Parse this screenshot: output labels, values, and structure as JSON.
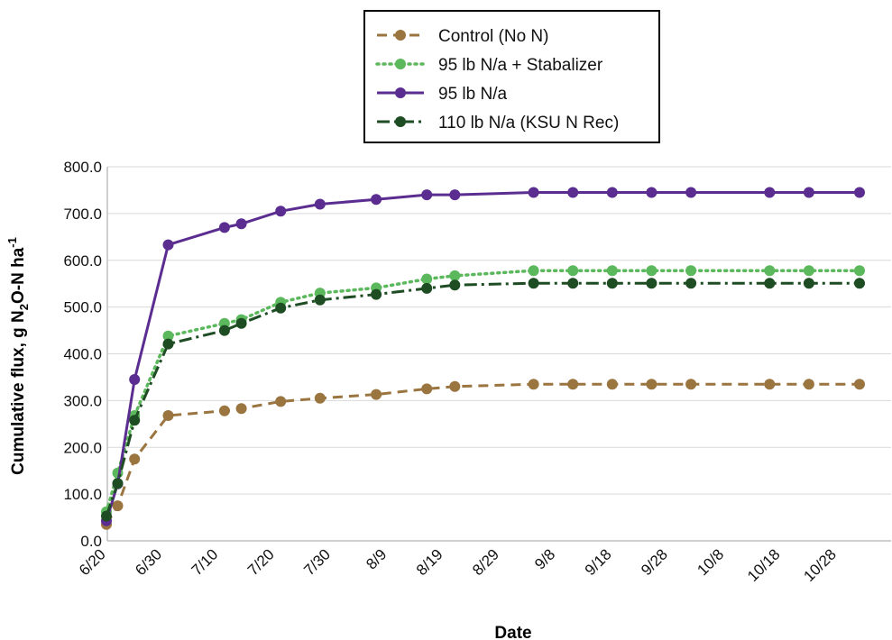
{
  "chart_data": {
    "type": "line",
    "title": "",
    "xlabel": "Date",
    "ylabel": "Cumulative  flux, g N2O-N ha-1",
    "ylabel_parts": {
      "main": "Cumulative  flux, g N",
      "sub": "2",
      "mid": "O-N ha",
      "sup": "-1"
    },
    "ylim": [
      0,
      800
    ],
    "y_ticks": [
      "0.0",
      "100.0",
      "200.0",
      "300.0",
      "400.0",
      "500.0",
      "600.0",
      "700.0",
      "800.0"
    ],
    "x_ticks": [
      "6/20",
      "6/30",
      "7/10",
      "7/20",
      "7/30",
      "8/9",
      "8/19",
      "8/29",
      "9/8",
      "9/18",
      "9/28",
      "10/8",
      "10/18",
      "10/28"
    ],
    "xlim": [
      "6/20",
      "11/1"
    ],
    "grid": "horizontal",
    "legend_position": "top-center",
    "series": [
      {
        "name": "Control (No N)",
        "color": "#9b7540",
        "dash": "dashed",
        "points": [
          [
            "6/20",
            35
          ],
          [
            "6/22",
            75
          ],
          [
            "6/25",
            175
          ],
          [
            "7/1",
            268
          ],
          [
            "7/11",
            278
          ],
          [
            "7/14",
            283
          ],
          [
            "7/21",
            298
          ],
          [
            "7/28",
            305
          ],
          [
            "8/7",
            313
          ],
          [
            "8/16",
            325
          ],
          [
            "8/21",
            330
          ],
          [
            "9/4",
            335
          ],
          [
            "9/11",
            335
          ],
          [
            "9/18",
            335
          ],
          [
            "9/25",
            335
          ],
          [
            "10/2",
            335
          ],
          [
            "10/16",
            335
          ],
          [
            "10/23",
            335
          ],
          [
            "11/1",
            335
          ]
        ]
      },
      {
        "name": "95 lb N/a + Stabalizer",
        "color": "#5cb85c",
        "dash": "dotted",
        "points": [
          [
            "6/20",
            62
          ],
          [
            "6/22",
            145
          ],
          [
            "6/25",
            268
          ],
          [
            "7/1",
            438
          ],
          [
            "7/11",
            465
          ],
          [
            "7/14",
            473
          ],
          [
            "7/21",
            510
          ],
          [
            "7/28",
            530
          ],
          [
            "8/7",
            541
          ],
          [
            "8/16",
            560
          ],
          [
            "8/21",
            567
          ],
          [
            "9/4",
            578
          ],
          [
            "9/11",
            578
          ],
          [
            "9/18",
            578
          ],
          [
            "9/25",
            578
          ],
          [
            "10/2",
            578
          ],
          [
            "10/16",
            578
          ],
          [
            "10/23",
            578
          ],
          [
            "11/1",
            578
          ]
        ]
      },
      {
        "name": "95 lb N/a",
        "color": "#5b2d90",
        "dash": "solid",
        "points": [
          [
            "6/20",
            43
          ],
          [
            "6/22",
            122
          ],
          [
            "6/25",
            345
          ],
          [
            "7/1",
            633
          ],
          [
            "7/11",
            670
          ],
          [
            "7/14",
            678
          ],
          [
            "7/21",
            705
          ],
          [
            "7/28",
            720
          ],
          [
            "8/7",
            730
          ],
          [
            "8/16",
            740
          ],
          [
            "8/21",
            740
          ],
          [
            "9/4",
            745
          ],
          [
            "9/11",
            745
          ],
          [
            "9/18",
            745
          ],
          [
            "9/25",
            745
          ],
          [
            "10/2",
            745
          ],
          [
            "10/16",
            745
          ],
          [
            "10/23",
            745
          ],
          [
            "11/1",
            745
          ]
        ]
      },
      {
        "name": "110 lb N/a (KSU N Rec)",
        "color": "#1e4d24",
        "dash": "dash-dot",
        "points": [
          [
            "6/20",
            53
          ],
          [
            "6/22",
            123
          ],
          [
            "6/25",
            258
          ],
          [
            "7/1",
            421
          ],
          [
            "7/11",
            450
          ],
          [
            "7/14",
            465
          ],
          [
            "7/21",
            498
          ],
          [
            "7/28",
            515
          ],
          [
            "8/7",
            527
          ],
          [
            "8/16",
            540
          ],
          [
            "8/21",
            547
          ],
          [
            "9/4",
            551
          ],
          [
            "9/11",
            551
          ],
          [
            "9/18",
            551
          ],
          [
            "9/25",
            551
          ],
          [
            "10/2",
            551
          ],
          [
            "10/16",
            551
          ],
          [
            "10/23",
            551
          ],
          [
            "11/1",
            551
          ]
        ]
      }
    ]
  }
}
